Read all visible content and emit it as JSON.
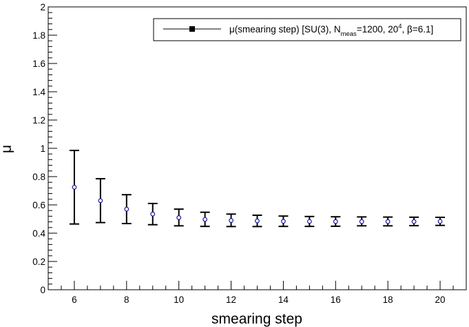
{
  "chart_data": {
    "type": "scatter",
    "title": "",
    "xlabel": "smearing step",
    "ylabel": "μ",
    "xlim": [
      5,
      21
    ],
    "ylim": [
      0,
      2
    ],
    "grid": false,
    "legend_placement": "top-right",
    "x_ticks": [
      6,
      8,
      10,
      12,
      14,
      16,
      18,
      20
    ],
    "x_tick_labels": [
      "6",
      "8",
      "10",
      "12",
      "14",
      "16",
      "18",
      "20"
    ],
    "y_ticks": [
      0,
      0.2,
      0.4,
      0.6,
      0.8,
      1,
      1.2,
      1.4,
      1.6,
      1.8,
      2
    ],
    "y_tick_labels": [
      "0",
      "0.2",
      "0.4",
      "0.6",
      "0.8",
      "1",
      "1.2",
      "1.4",
      "1.6",
      "1.8",
      "2"
    ],
    "legend": {
      "main": "μ(smearing step) [SU(3), N",
      "sub": "meas",
      "mid": "=1200, 20",
      "sup": "4",
      "tail": ", β=6.1]"
    },
    "series": [
      {
        "marker_color": "#1a1aa0",
        "errorbar_color": "#000000",
        "x": [
          6,
          7,
          8,
          9,
          10,
          11,
          12,
          13,
          14,
          15,
          16,
          17,
          18,
          19,
          20
        ],
        "y": [
          0.725,
          0.63,
          0.57,
          0.535,
          0.51,
          0.497,
          0.49,
          0.487,
          0.484,
          0.483,
          0.482,
          0.482,
          0.482,
          0.482,
          0.483
        ],
        "y_low": [
          0.465,
          0.475,
          0.468,
          0.46,
          0.452,
          0.448,
          0.447,
          0.447,
          0.448,
          0.448,
          0.449,
          0.452,
          0.452,
          0.453,
          0.455
        ],
        "y_high": [
          0.985,
          0.785,
          0.672,
          0.61,
          0.57,
          0.548,
          0.535,
          0.527,
          0.521,
          0.518,
          0.516,
          0.515,
          0.514,
          0.513,
          0.512
        ]
      }
    ]
  }
}
